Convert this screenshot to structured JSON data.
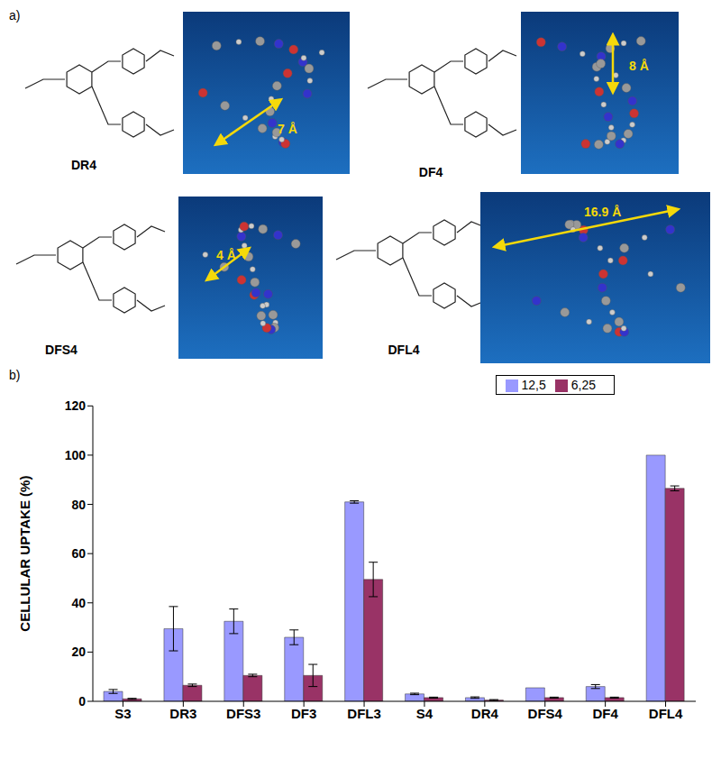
{
  "panel_a": {
    "label": "a)",
    "compounds": [
      {
        "name": "DR4",
        "distance": "7 Å"
      },
      {
        "name": "DF4",
        "distance": "8 Å"
      },
      {
        "name": "DFS4",
        "distance": "4 Å"
      },
      {
        "name": "DFL4",
        "distance": "16.9 Å"
      }
    ]
  },
  "chart_data": {
    "type": "bar",
    "label": "b)",
    "y_label": "CELLULAR UPTAKE (%)",
    "categories": [
      "S3",
      "DR3",
      "DFS3",
      "DF3",
      "DFL3",
      "S4",
      "DR4",
      "DFS4",
      "DF4",
      "DFL4"
    ],
    "series": [
      {
        "name": "12,5",
        "color": "#9999ff",
        "values": [
          4,
          29.5,
          32.5,
          26,
          81,
          3,
          1.5,
          5.5,
          6,
          100
        ],
        "errors": [
          0.8,
          9,
          5,
          3,
          0.5,
          0.3,
          0.3,
          0,
          0.8,
          0
        ]
      },
      {
        "name": "6,25",
        "color": "#993366",
        "values": [
          1,
          6.5,
          10.5,
          10.5,
          49.5,
          1.5,
          0.5,
          1.5,
          1.5,
          86.5
        ],
        "errors": [
          0.2,
          0.5,
          0.5,
          4.5,
          7,
          0.2,
          0.2,
          0.2,
          0.2,
          1
        ]
      }
    ],
    "ylim": [
      0,
      120
    ],
    "yticks": [
      0,
      20,
      40,
      60,
      80,
      100,
      120
    ],
    "grid": false,
    "legend": "upper right"
  }
}
